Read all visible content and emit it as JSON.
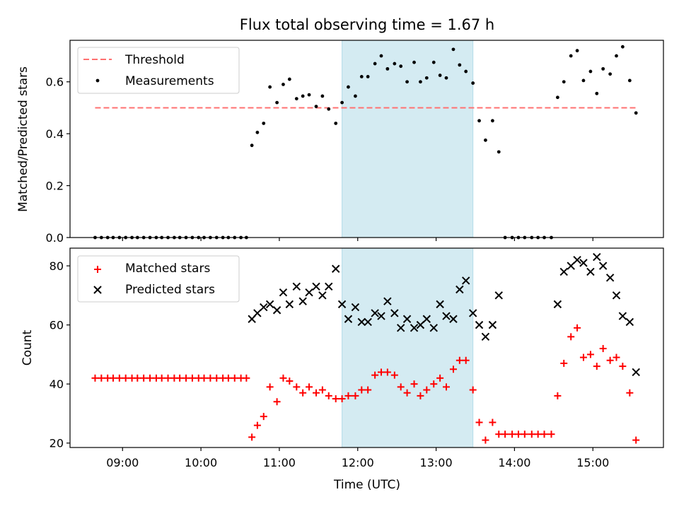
{
  "chart_data": [
    {
      "type": "scatter",
      "title": "Flux total observing time = 1.67 h",
      "ylabel": "Matched/Predicted stars",
      "xlabel": "",
      "ylim": [
        0.0,
        0.76
      ],
      "yticks": [
        0.0,
        0.2,
        0.4,
        0.6
      ],
      "ytick_labels": [
        "0.0",
        "0.2",
        "0.4",
        "0.6"
      ],
      "legend_position": "top-left",
      "highlight_band": {
        "start": 11.8,
        "end": 13.47,
        "color": "#add8e6"
      },
      "threshold": {
        "name": "Threshold",
        "value": 0.5,
        "start": 8.65,
        "end": 15.55,
        "color": "#ff7070"
      },
      "series": [
        {
          "name": "Measurements",
          "color": "#000000",
          "points": [
            [
              8.65,
              0
            ],
            [
              8.73,
              0
            ],
            [
              8.81,
              0
            ],
            [
              8.88,
              0
            ],
            [
              8.96,
              0
            ],
            [
              9.04,
              0
            ],
            [
              9.12,
              0
            ],
            [
              9.19,
              0
            ],
            [
              9.27,
              0
            ],
            [
              9.35,
              0
            ],
            [
              9.43,
              0
            ],
            [
              9.5,
              0
            ],
            [
              9.58,
              0
            ],
            [
              9.66,
              0
            ],
            [
              9.73,
              0
            ],
            [
              9.81,
              0
            ],
            [
              9.89,
              0
            ],
            [
              9.97,
              0
            ],
            [
              10.04,
              0
            ],
            [
              10.12,
              0
            ],
            [
              10.2,
              0
            ],
            [
              10.28,
              0
            ],
            [
              10.35,
              0
            ],
            [
              10.43,
              0
            ],
            [
              10.51,
              0
            ],
            [
              10.58,
              0
            ],
            [
              10.65,
              0.355
            ],
            [
              10.72,
              0.405
            ],
            [
              10.8,
              0.44
            ],
            [
              10.88,
              0.58
            ],
            [
              10.97,
              0.52
            ],
            [
              11.05,
              0.59
            ],
            [
              11.13,
              0.61
            ],
            [
              11.22,
              0.535
            ],
            [
              11.3,
              0.545
            ],
            [
              11.38,
              0.55
            ],
            [
              11.47,
              0.505
            ],
            [
              11.55,
              0.545
            ],
            [
              11.63,
              0.495
            ],
            [
              11.72,
              0.44
            ],
            [
              11.8,
              0.52
            ],
            [
              11.88,
              0.58
            ],
            [
              11.97,
              0.545
            ],
            [
              12.05,
              0.62
            ],
            [
              12.13,
              0.62
            ],
            [
              12.22,
              0.67
            ],
            [
              12.3,
              0.7
            ],
            [
              12.38,
              0.65
            ],
            [
              12.47,
              0.67
            ],
            [
              12.55,
              0.66
            ],
            [
              12.63,
              0.6
            ],
            [
              12.72,
              0.675
            ],
            [
              12.8,
              0.6
            ],
            [
              12.88,
              0.615
            ],
            [
              12.97,
              0.675
            ],
            [
              13.05,
              0.625
            ],
            [
              13.13,
              0.615
            ],
            [
              13.22,
              0.725
            ],
            [
              13.3,
              0.665
            ],
            [
              13.38,
              0.64
            ],
            [
              13.47,
              0.595
            ],
            [
              13.55,
              0.45
            ],
            [
              13.63,
              0.375
            ],
            [
              13.72,
              0.45
            ],
            [
              13.8,
              0.33
            ],
            [
              13.88,
              0
            ],
            [
              13.97,
              0
            ],
            [
              14.05,
              0
            ],
            [
              14.13,
              0
            ],
            [
              14.22,
              0
            ],
            [
              14.3,
              0
            ],
            [
              14.38,
              0
            ],
            [
              14.47,
              0
            ],
            [
              14.55,
              0.54
            ],
            [
              14.63,
              0.6
            ],
            [
              14.72,
              0.7
            ],
            [
              14.8,
              0.72
            ],
            [
              14.88,
              0.605
            ],
            [
              14.97,
              0.64
            ],
            [
              15.05,
              0.555
            ],
            [
              15.13,
              0.65
            ],
            [
              15.22,
              0.63
            ],
            [
              15.3,
              0.7
            ],
            [
              15.38,
              0.735
            ],
            [
              15.47,
              0.605
            ],
            [
              15.55,
              0.48
            ]
          ]
        }
      ]
    },
    {
      "type": "scatter",
      "title": "",
      "xlabel": "Time (UTC)",
      "ylabel": "Count",
      "xlim": [
        8.33,
        15.9
      ],
      "ylim": [
        18.5,
        86
      ],
      "xticks": [
        9,
        10,
        11,
        12,
        13,
        14,
        15
      ],
      "xtick_labels": [
        "09:00",
        "10:00",
        "11:00",
        "12:00",
        "13:00",
        "14:00",
        "15:00"
      ],
      "yticks": [
        20,
        40,
        60,
        80
      ],
      "ytick_labels": [
        "20",
        "40",
        "60",
        "80"
      ],
      "legend_position": "top-left",
      "highlight_band": {
        "start": 11.8,
        "end": 13.47,
        "color": "#add8e6"
      },
      "series": [
        {
          "name": "Matched stars",
          "marker": "plus",
          "color": "#ff0000",
          "points": [
            [
              8.65,
              42
            ],
            [
              8.73,
              42
            ],
            [
              8.81,
              42
            ],
            [
              8.88,
              42
            ],
            [
              8.96,
              42
            ],
            [
              9.04,
              42
            ],
            [
              9.12,
              42
            ],
            [
              9.19,
              42
            ],
            [
              9.27,
              42
            ],
            [
              9.35,
              42
            ],
            [
              9.43,
              42
            ],
            [
              9.5,
              42
            ],
            [
              9.58,
              42
            ],
            [
              9.66,
              42
            ],
            [
              9.73,
              42
            ],
            [
              9.81,
              42
            ],
            [
              9.89,
              42
            ],
            [
              9.97,
              42
            ],
            [
              10.04,
              42
            ],
            [
              10.12,
              42
            ],
            [
              10.2,
              42
            ],
            [
              10.28,
              42
            ],
            [
              10.35,
              42
            ],
            [
              10.43,
              42
            ],
            [
              10.51,
              42
            ],
            [
              10.58,
              42
            ],
            [
              10.65,
              22
            ],
            [
              10.72,
              26
            ],
            [
              10.8,
              29
            ],
            [
              10.88,
              39
            ],
            [
              10.97,
              34
            ],
            [
              11.05,
              42
            ],
            [
              11.13,
              41
            ],
            [
              11.22,
              39
            ],
            [
              11.3,
              37
            ],
            [
              11.38,
              39
            ],
            [
              11.47,
              37
            ],
            [
              11.55,
              38
            ],
            [
              11.63,
              36
            ],
            [
              11.72,
              35
            ],
            [
              11.8,
              35
            ],
            [
              11.88,
              36
            ],
            [
              11.97,
              36
            ],
            [
              12.05,
              38
            ],
            [
              12.13,
              38
            ],
            [
              12.22,
              43
            ],
            [
              12.3,
              44
            ],
            [
              12.38,
              44
            ],
            [
              12.47,
              43
            ],
            [
              12.55,
              39
            ],
            [
              12.63,
              37
            ],
            [
              12.72,
              40
            ],
            [
              12.8,
              36
            ],
            [
              12.88,
              38
            ],
            [
              12.97,
              40
            ],
            [
              13.05,
              42
            ],
            [
              13.13,
              39
            ],
            [
              13.22,
              45
            ],
            [
              13.3,
              48
            ],
            [
              13.38,
              48
            ],
            [
              13.47,
              38
            ],
            [
              13.55,
              27
            ],
            [
              13.63,
              21
            ],
            [
              13.72,
              27
            ],
            [
              13.8,
              23
            ],
            [
              13.88,
              23
            ],
            [
              13.97,
              23
            ],
            [
              14.05,
              23
            ],
            [
              14.13,
              23
            ],
            [
              14.22,
              23
            ],
            [
              14.3,
              23
            ],
            [
              14.38,
              23
            ],
            [
              14.47,
              23
            ],
            [
              14.55,
              36
            ],
            [
              14.63,
              47
            ],
            [
              14.72,
              56
            ],
            [
              14.8,
              59
            ],
            [
              14.88,
              49
            ],
            [
              14.97,
              50
            ],
            [
              15.05,
              46
            ],
            [
              15.13,
              52
            ],
            [
              15.22,
              48
            ],
            [
              15.3,
              49
            ],
            [
              15.38,
              46
            ],
            [
              15.47,
              37
            ],
            [
              15.55,
              21
            ]
          ]
        },
        {
          "name": "Predicted stars",
          "marker": "x",
          "color": "#000000",
          "points": [
            [
              10.65,
              62
            ],
            [
              10.72,
              64
            ],
            [
              10.8,
              66
            ],
            [
              10.88,
              67
            ],
            [
              10.97,
              65
            ],
            [
              11.05,
              71
            ],
            [
              11.13,
              67
            ],
            [
              11.22,
              73
            ],
            [
              11.3,
              68
            ],
            [
              11.38,
              71
            ],
            [
              11.47,
              73
            ],
            [
              11.55,
              70
            ],
            [
              11.63,
              73
            ],
            [
              11.72,
              79
            ],
            [
              11.8,
              67
            ],
            [
              11.88,
              62
            ],
            [
              11.97,
              66
            ],
            [
              12.05,
              61
            ],
            [
              12.13,
              61
            ],
            [
              12.22,
              64
            ],
            [
              12.3,
              63
            ],
            [
              12.38,
              68
            ],
            [
              12.47,
              64
            ],
            [
              12.55,
              59
            ],
            [
              12.63,
              62
            ],
            [
              12.72,
              59
            ],
            [
              12.8,
              60
            ],
            [
              12.88,
              62
            ],
            [
              12.97,
              59
            ],
            [
              13.05,
              67
            ],
            [
              13.13,
              63
            ],
            [
              13.22,
              62
            ],
            [
              13.3,
              72
            ],
            [
              13.38,
              75
            ],
            [
              13.47,
              64
            ],
            [
              13.55,
              60
            ],
            [
              13.63,
              56
            ],
            [
              13.72,
              60
            ],
            [
              13.8,
              70
            ],
            [
              14.55,
              67
            ],
            [
              14.63,
              78
            ],
            [
              14.72,
              80
            ],
            [
              14.8,
              82
            ],
            [
              14.88,
              81
            ],
            [
              14.97,
              78
            ],
            [
              15.05,
              83
            ],
            [
              15.13,
              80
            ],
            [
              15.22,
              76
            ],
            [
              15.3,
              70
            ],
            [
              15.38,
              63
            ],
            [
              15.47,
              61
            ],
            [
              15.55,
              44
            ]
          ]
        }
      ]
    }
  ]
}
